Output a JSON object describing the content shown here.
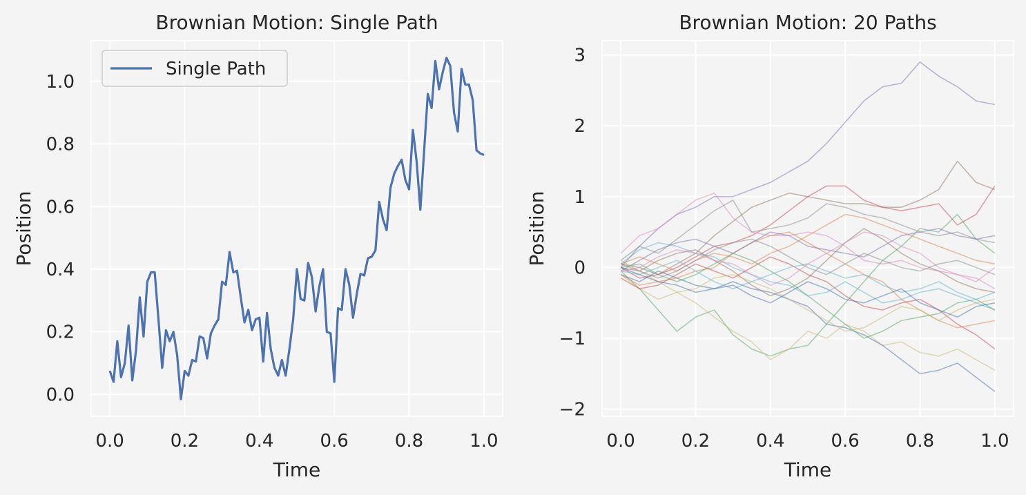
{
  "chart_data": [
    {
      "type": "line",
      "title": "Brownian Motion: Single Path",
      "xlabel": "Time",
      "ylabel": "Position",
      "xlim": [
        -0.05,
        1.05
      ],
      "ylim": [
        -0.07,
        1.13
      ],
      "xticks": [
        0.0,
        0.2,
        0.4,
        0.6,
        0.8,
        1.0
      ],
      "xtick_labels": [
        "0.0",
        "0.2",
        "0.4",
        "0.6",
        "0.8",
        "1.0"
      ],
      "yticks": [
        0.0,
        0.2,
        0.4,
        0.6,
        0.8,
        1.0
      ],
      "ytick_labels": [
        "0.0",
        "0.2",
        "0.4",
        "0.6",
        "0.8",
        "1.0"
      ],
      "grid": true,
      "legend": "top-left",
      "series": [
        {
          "name": "Single Path",
          "color": "#4c72b0",
          "x": [
            0.0,
            0.01,
            0.02,
            0.03,
            0.04,
            0.05,
            0.06,
            0.07,
            0.08,
            0.09,
            0.1,
            0.11,
            0.12,
            0.13,
            0.14,
            0.15,
            0.16,
            0.17,
            0.18,
            0.19,
            0.2,
            0.21,
            0.22,
            0.23,
            0.24,
            0.25,
            0.26,
            0.27,
            0.28,
            0.29,
            0.3,
            0.31,
            0.32,
            0.33,
            0.34,
            0.35,
            0.36,
            0.37,
            0.38,
            0.39,
            0.4,
            0.41,
            0.42,
            0.43,
            0.44,
            0.45,
            0.46,
            0.47,
            0.48,
            0.49,
            0.5,
            0.51,
            0.52,
            0.53,
            0.54,
            0.55,
            0.56,
            0.57,
            0.58,
            0.59,
            0.6,
            0.61,
            0.62,
            0.63,
            0.64,
            0.65,
            0.66,
            0.67,
            0.68,
            0.69,
            0.7,
            0.71,
            0.72,
            0.73,
            0.74,
            0.75,
            0.76,
            0.77,
            0.78,
            0.79,
            0.8,
            0.81,
            0.82,
            0.83,
            0.84,
            0.85,
            0.86,
            0.87,
            0.88,
            0.89,
            0.9,
            0.91,
            0.92,
            0.93,
            0.94,
            0.95,
            0.96,
            0.97,
            0.98,
            0.99,
            1.0
          ],
          "y": [
            0.075,
            0.04,
            0.17,
            0.055,
            0.1,
            0.22,
            0.045,
            0.14,
            0.31,
            0.185,
            0.36,
            0.39,
            0.39,
            0.24,
            0.085,
            0.205,
            0.17,
            0.2,
            0.125,
            -0.015,
            0.075,
            0.06,
            0.11,
            0.105,
            0.185,
            0.18,
            0.115,
            0.195,
            0.22,
            0.24,
            0.36,
            0.35,
            0.455,
            0.39,
            0.395,
            0.31,
            0.23,
            0.27,
            0.205,
            0.24,
            0.245,
            0.105,
            0.26,
            0.145,
            0.085,
            0.06,
            0.11,
            0.06,
            0.145,
            0.24,
            0.4,
            0.305,
            0.3,
            0.42,
            0.375,
            0.265,
            0.345,
            0.4,
            0.2,
            0.195,
            0.04,
            0.275,
            0.27,
            0.4,
            0.35,
            0.245,
            0.32,
            0.385,
            0.38,
            0.435,
            0.44,
            0.46,
            0.615,
            0.56,
            0.525,
            0.66,
            0.705,
            0.73,
            0.75,
            0.685,
            0.655,
            0.845,
            0.745,
            0.59,
            0.775,
            0.96,
            0.915,
            1.065,
            0.975,
            1.03,
            1.075,
            1.05,
            0.9,
            0.84,
            1.04,
            0.99,
            0.99,
            0.94,
            0.78,
            0.77,
            0.765
          ]
        }
      ]
    },
    {
      "type": "line",
      "title": "Brownian Motion: 20 Paths",
      "xlabel": "Time",
      "ylabel": "Position",
      "xlim": [
        -0.05,
        1.05
      ],
      "ylim": [
        -2.1,
        3.2
      ],
      "xticks": [
        0.0,
        0.2,
        0.4,
        0.6,
        0.8,
        1.0
      ],
      "xtick_labels": [
        "0.0",
        "0.2",
        "0.4",
        "0.6",
        "0.8",
        "1.0"
      ],
      "yticks": [
        -2,
        -1,
        0,
        1,
        2,
        3
      ],
      "ytick_labels": [
        "−2",
        "−1",
        "0",
        "1",
        "2",
        "3"
      ],
      "grid": true,
      "line_alpha": 0.5,
      "x": [
        0.0,
        0.05,
        0.1,
        0.15,
        0.2,
        0.25,
        0.3,
        0.35,
        0.4,
        0.45,
        0.5,
        0.55,
        0.6,
        0.65,
        0.7,
        0.75,
        0.8,
        0.85,
        0.9,
        0.95,
        1.0
      ],
      "series": [
        {
          "color": "#8172b3",
          "y": [
            0.0,
            0.3,
            0.55,
            0.75,
            0.85,
            1.0,
            1.0,
            1.1,
            1.2,
            1.35,
            1.5,
            1.75,
            2.05,
            2.35,
            2.55,
            2.6,
            2.9,
            2.7,
            2.55,
            2.35,
            2.3
          ]
        },
        {
          "color": "#937860",
          "y": [
            0.05,
            0.0,
            -0.1,
            0.05,
            0.2,
            0.45,
            0.65,
            0.85,
            0.95,
            1.05,
            1.0,
            0.95,
            0.9,
            0.9,
            0.85,
            0.85,
            0.95,
            1.1,
            1.5,
            1.2,
            1.1
          ]
        },
        {
          "color": "#c44e52",
          "y": [
            0.0,
            -0.15,
            -0.1,
            0.0,
            0.15,
            0.3,
            0.35,
            0.45,
            0.6,
            0.8,
            1.0,
            1.15,
            1.15,
            0.95,
            0.85,
            0.8,
            0.85,
            0.9,
            0.6,
            0.75,
            1.15
          ]
        },
        {
          "color": "#da8bc3",
          "y": [
            0.2,
            0.45,
            0.55,
            0.75,
            0.95,
            1.05,
            0.7,
            0.5,
            0.45,
            0.45,
            0.5,
            0.45,
            0.3,
            0.1,
            0.05,
            0.1,
            0.0,
            -0.05,
            -0.1,
            -0.2,
            0.0
          ]
        },
        {
          "color": "#8c8c8c",
          "y": [
            0.1,
            0.3,
            0.2,
            0.4,
            0.6,
            0.8,
            0.95,
            0.5,
            0.55,
            0.6,
            0.7,
            0.9,
            0.85,
            0.75,
            0.7,
            0.6,
            0.5,
            0.45,
            0.5,
            0.4,
            0.35
          ]
        },
        {
          "color": "#55a868",
          "y": [
            -0.05,
            -0.3,
            -0.6,
            -0.9,
            -0.7,
            -0.6,
            -0.95,
            -1.15,
            -1.25,
            -1.15,
            -1.1,
            -0.8,
            -0.5,
            -0.2,
            0.1,
            0.3,
            0.55,
            0.5,
            0.75,
            0.4,
            0.2
          ]
        },
        {
          "color": "#ccb974",
          "y": [
            -0.1,
            -0.3,
            -0.45,
            -0.35,
            -0.5,
            -0.7,
            -0.9,
            -1.05,
            -1.3,
            -1.15,
            -0.9,
            -1.0,
            -0.8,
            -0.9,
            -1.1,
            -1.05,
            -1.2,
            -1.25,
            -1.15,
            -1.3,
            -1.45
          ]
        },
        {
          "color": "#4c72b0",
          "y": [
            -0.1,
            -0.2,
            -0.05,
            -0.15,
            -0.25,
            -0.3,
            -0.2,
            -0.3,
            -0.35,
            -0.45,
            -0.55,
            -0.8,
            -0.85,
            -0.95,
            -1.1,
            -1.3,
            -1.5,
            -1.45,
            -1.35,
            -1.55,
            -1.75
          ]
        },
        {
          "color": "#64b5cd",
          "y": [
            0.05,
            0.25,
            0.35,
            0.3,
            0.2,
            0.15,
            0.0,
            -0.1,
            -0.2,
            -0.25,
            -0.4,
            -0.35,
            -0.2,
            -0.35,
            -0.5,
            -0.45,
            -0.35,
            -0.3,
            -0.4,
            -0.5,
            -0.6
          ]
        },
        {
          "color": "#dd8452",
          "y": [
            -0.1,
            -0.25,
            -0.2,
            -0.15,
            -0.05,
            0.0,
            0.2,
            0.35,
            0.45,
            0.5,
            0.35,
            0.2,
            0.05,
            -0.1,
            -0.2,
            -0.45,
            -0.6,
            -0.75,
            -0.85,
            -0.8,
            -0.75
          ]
        },
        {
          "color": "#8172b3",
          "y": [
            -0.05,
            0.1,
            0.25,
            0.35,
            0.4,
            0.3,
            0.2,
            0.35,
            0.5,
            0.45,
            0.3,
            0.25,
            0.2,
            0.15,
            0.3,
            0.45,
            0.5,
            0.55,
            0.45,
            0.4,
            0.45
          ]
        },
        {
          "color": "#937860",
          "y": [
            0.0,
            -0.05,
            0.1,
            0.2,
            0.25,
            0.1,
            -0.05,
            -0.25,
            -0.4,
            -0.3,
            -0.15,
            0.1,
            0.35,
            0.55,
            0.4,
            0.2,
            0.05,
            -0.05,
            -0.2,
            -0.3,
            -0.35
          ]
        },
        {
          "color": "#c44e52",
          "y": [
            -0.15,
            -0.3,
            -0.25,
            -0.1,
            0.05,
            -0.05,
            -0.15,
            0.0,
            0.15,
            0.05,
            -0.1,
            -0.2,
            -0.4,
            -0.55,
            -0.6,
            -0.5,
            -0.45,
            -0.6,
            -0.8,
            -0.95,
            -1.15
          ]
        },
        {
          "color": "#55a868",
          "y": [
            0.0,
            0.05,
            -0.1,
            -0.2,
            -0.1,
            0.05,
            0.2,
            0.1,
            -0.05,
            -0.2,
            -0.4,
            -0.6,
            -0.8,
            -1.0,
            -0.9,
            -0.75,
            -0.7,
            -0.65,
            -0.5,
            -0.45,
            -0.6
          ]
        },
        {
          "color": "#ccb974",
          "y": [
            0.1,
            -0.05,
            -0.2,
            -0.35,
            -0.3,
            -0.15,
            -0.1,
            -0.2,
            -0.3,
            -0.45,
            -0.6,
            -0.75,
            -0.9,
            -0.85,
            -0.7,
            -0.55,
            -0.6,
            -0.75,
            -0.6,
            -0.5,
            -0.45
          ]
        },
        {
          "color": "#64b5cd",
          "y": [
            -0.05,
            -0.1,
            0.0,
            0.1,
            -0.05,
            -0.2,
            -0.3,
            -0.2,
            -0.1,
            0.0,
            0.05,
            -0.05,
            -0.15,
            -0.1,
            -0.25,
            -0.35,
            -0.3,
            -0.2,
            -0.35,
            -0.45,
            -0.35
          ]
        },
        {
          "color": "#dd8452",
          "y": [
            0.05,
            0.15,
            0.05,
            -0.05,
            0.1,
            0.2,
            0.15,
            0.05,
            0.2,
            0.3,
            0.45,
            0.6,
            0.75,
            0.7,
            0.6,
            0.5,
            0.4,
            0.3,
            0.2,
            0.1,
            0.05
          ]
        },
        {
          "color": "#da8bc3",
          "y": [
            -0.05,
            0.0,
            0.15,
            0.25,
            0.2,
            0.1,
            0.05,
            -0.1,
            -0.25,
            -0.15,
            0.05,
            0.2,
            0.35,
            0.5,
            0.45,
            0.3,
            0.2,
            0.0,
            -0.1,
            -0.15,
            -0.3
          ]
        },
        {
          "color": "#4c72b0",
          "y": [
            0.0,
            -0.1,
            -0.2,
            -0.25,
            -0.35,
            -0.3,
            -0.25,
            -0.4,
            -0.5,
            -0.35,
            -0.2,
            -0.3,
            -0.45,
            -0.5,
            -0.4,
            -0.3,
            -0.5,
            -0.6,
            -0.7,
            -0.55,
            -0.5
          ]
        },
        {
          "color": "#8c8c8c",
          "y": [
            0.05,
            -0.05,
            -0.15,
            -0.05,
            0.1,
            0.25,
            0.35,
            0.4,
            0.3,
            0.15,
            0.0,
            -0.1,
            0.05,
            0.2,
            0.1,
            0.0,
            -0.05,
            0.05,
            0.1,
            0.0,
            -0.1
          ]
        }
      ]
    }
  ]
}
